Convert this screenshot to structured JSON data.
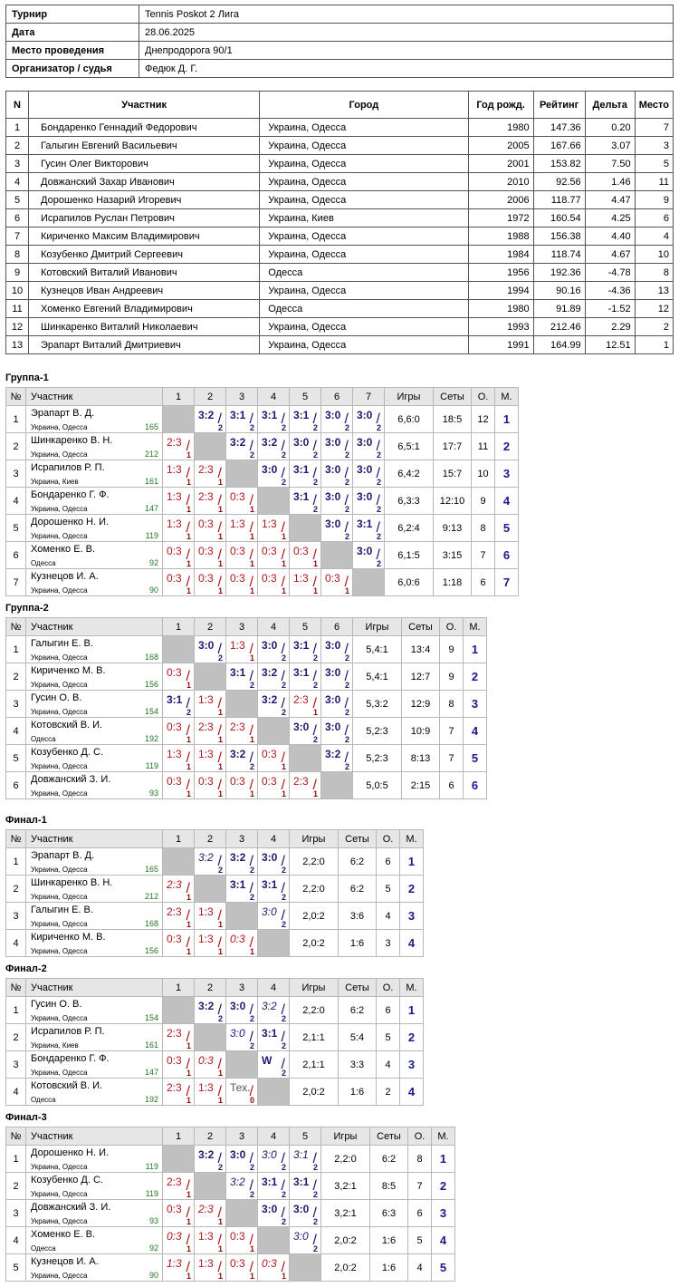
{
  "info": [
    {
      "k": "Турнир",
      "v": "Tennis Poskot 2 Лига"
    },
    {
      "k": "Дата",
      "v": "28.06.2025"
    },
    {
      "k": "Место проведения",
      "v": "Днепродорога 90/1"
    },
    {
      "k": "Организатор / судья",
      "v": "Федюк Д. Г."
    }
  ],
  "participants": {
    "headers": [
      "N",
      "Участник",
      "Город",
      "Год рожд.",
      "Рейтинг",
      "Дельта",
      "Место"
    ],
    "rows": [
      [
        "1",
        "Бондаренко Геннадий Федорович",
        "Украина, Одесса",
        "1980",
        "147.36",
        "0.20",
        "7"
      ],
      [
        "2",
        "Галыгин Евгений Васильевич",
        "Украина, Одесса",
        "2005",
        "167.66",
        "3.07",
        "3"
      ],
      [
        "3",
        "Гусин Олег Викторович",
        "Украина, Одесса",
        "2001",
        "153.82",
        "7.50",
        "5"
      ],
      [
        "4",
        "Довжанский Захар Иванович",
        "Украина, Одесса",
        "2010",
        "92.56",
        "1.46",
        "11"
      ],
      [
        "5",
        "Дорошенко Назарий Игоревич",
        "Украина, Одесса",
        "2006",
        "118.77",
        "4.47",
        "9"
      ],
      [
        "6",
        "Исрапилов Руслан Петрович",
        "Украина, Киев",
        "1972",
        "160.54",
        "4.25",
        "6"
      ],
      [
        "7",
        "Кириченко Максим Владимирович",
        "Украина, Одесса",
        "1988",
        "156.38",
        "4.40",
        "4"
      ],
      [
        "8",
        "Козубенко Дмитрий Сергеевич",
        "Украина, Одесса",
        "1984",
        "118.74",
        "4.67",
        "10"
      ],
      [
        "9",
        "Котовский Виталий Иванович",
        "Одесса",
        "1956",
        "192.36",
        "-4.78",
        "8"
      ],
      [
        "10",
        "Кузнецов Иван Андреевич",
        "Украина, Одесса",
        "1994",
        "90.16",
        "-4.36",
        "13"
      ],
      [
        "11",
        "Хоменко Евгений Владимирович",
        "Одесса",
        "1980",
        "91.89",
        "-1.52",
        "12"
      ],
      [
        "12",
        "Шинкаренко Виталий Николаевич",
        "Украина, Одесса",
        "1993",
        "212.46",
        "2.29",
        "2"
      ],
      [
        "13",
        "Эрапарт Виталий Дмитриевич",
        "Украина, Одесса",
        "1991",
        "164.99",
        "12.51",
        "1"
      ]
    ]
  },
  "group_headers": {
    "num": "№",
    "participant": "Участник",
    "games": "Игры",
    "sets": "Сеты",
    "points": "О.",
    "place": "М."
  },
  "groups": [
    {
      "title": "Группа-1",
      "players": [
        {
          "n": "1",
          "name": "Эрапарт В. Д.",
          "city": "Украина, Одесса",
          "rating": "165",
          "res": [
            null,
            [
              "3:2",
              "2"
            ],
            [
              "3:1",
              "2"
            ],
            [
              "3:1",
              "2"
            ],
            [
              "3:1",
              "2"
            ],
            [
              "3:0",
              "2"
            ],
            [
              "3:0",
              "2"
            ]
          ],
          "games": "6,6:0",
          "sets": "18:5",
          "points": "12",
          "place": "1"
        },
        {
          "n": "2",
          "name": "Шинкаренко В. Н.",
          "city": "Украина, Одесса",
          "rating": "212",
          "res": [
            [
              "2:3",
              "1"
            ],
            null,
            [
              "3:2",
              "2"
            ],
            [
              "3:2",
              "2"
            ],
            [
              "3:0",
              "2"
            ],
            [
              "3:0",
              "2"
            ],
            [
              "3:0",
              "2"
            ]
          ],
          "games": "6,5:1",
          "sets": "17:7",
          "points": "11",
          "place": "2"
        },
        {
          "n": "3",
          "name": "Исрапилов Р. П.",
          "city": "Украина, Киев",
          "rating": "161",
          "res": [
            [
              "1:3",
              "1"
            ],
            [
              "2:3",
              "1"
            ],
            null,
            [
              "3:0",
              "2"
            ],
            [
              "3:1",
              "2"
            ],
            [
              "3:0",
              "2"
            ],
            [
              "3:0",
              "2"
            ]
          ],
          "games": "6,4:2",
          "sets": "15:7",
          "points": "10",
          "place": "3"
        },
        {
          "n": "4",
          "name": "Бондаренко Г. Ф.",
          "city": "Украина, Одесса",
          "rating": "147",
          "res": [
            [
              "1:3",
              "1"
            ],
            [
              "2:3",
              "1"
            ],
            [
              "0:3",
              "1"
            ],
            null,
            [
              "3:1",
              "2"
            ],
            [
              "3:0",
              "2"
            ],
            [
              "3:0",
              "2"
            ]
          ],
          "games": "6,3:3",
          "sets": "12:10",
          "points": "9",
          "place": "4"
        },
        {
          "n": "5",
          "name": "Дорошенко Н. И.",
          "city": "Украина, Одесса",
          "rating": "119",
          "res": [
            [
              "1:3",
              "1"
            ],
            [
              "0:3",
              "1"
            ],
            [
              "1:3",
              "1"
            ],
            [
              "1:3",
              "1"
            ],
            null,
            [
              "3:0",
              "2"
            ],
            [
              "3:1",
              "2"
            ]
          ],
          "games": "6,2:4",
          "sets": "9:13",
          "points": "8",
          "place": "5"
        },
        {
          "n": "6",
          "name": "Хоменко Е. В.",
          "city": "Одесса",
          "rating": "92",
          "res": [
            [
              "0:3",
              "1"
            ],
            [
              "0:3",
              "1"
            ],
            [
              "0:3",
              "1"
            ],
            [
              "0:3",
              "1"
            ],
            [
              "0:3",
              "1"
            ],
            null,
            [
              "3:0",
              "2"
            ]
          ],
          "games": "6,1:5",
          "sets": "3:15",
          "points": "7",
          "place": "6"
        },
        {
          "n": "7",
          "name": "Кузнецов И. А.",
          "city": "Украина, Одесса",
          "rating": "90",
          "res": [
            [
              "0:3",
              "1"
            ],
            [
              "0:3",
              "1"
            ],
            [
              "0:3",
              "1"
            ],
            [
              "0:3",
              "1"
            ],
            [
              "1:3",
              "1"
            ],
            [
              "0:3",
              "1"
            ],
            null
          ],
          "games": "6,0:6",
          "sets": "1:18",
          "points": "6",
          "place": "7"
        }
      ]
    },
    {
      "title": "Группа-2",
      "players": [
        {
          "n": "1",
          "name": "Галыгин Е. В.",
          "city": "Украина, Одесса",
          "rating": "168",
          "res": [
            null,
            [
              "3:0",
              "2"
            ],
            [
              "1:3",
              "1"
            ],
            [
              "3:0",
              "2"
            ],
            [
              "3:1",
              "2"
            ],
            [
              "3:0",
              "2"
            ]
          ],
          "games": "5,4:1",
          "sets": "13:4",
          "points": "9",
          "place": "1"
        },
        {
          "n": "2",
          "name": "Кириченко М. В.",
          "city": "Украина, Одесса",
          "rating": "156",
          "res": [
            [
              "0:3",
              "1"
            ],
            null,
            [
              "3:1",
              "2"
            ],
            [
              "3:2",
              "2"
            ],
            [
              "3:1",
              "2"
            ],
            [
              "3:0",
              "2"
            ]
          ],
          "games": "5,4:1",
          "sets": "12:7",
          "points": "9",
          "place": "2"
        },
        {
          "n": "3",
          "name": "Гусин О. В.",
          "city": "Украина, Одесса",
          "rating": "154",
          "res": [
            [
              "3:1",
              "2"
            ],
            [
              "1:3",
              "1"
            ],
            null,
            [
              "3:2",
              "2"
            ],
            [
              "2:3",
              "1"
            ],
            [
              "3:0",
              "2"
            ]
          ],
          "games": "5,3:2",
          "sets": "12:9",
          "points": "8",
          "place": "3"
        },
        {
          "n": "4",
          "name": "Котовский В. И.",
          "city": "Одесса",
          "rating": "192",
          "res": [
            [
              "0:3",
              "1"
            ],
            [
              "2:3",
              "1"
            ],
            [
              "2:3",
              "1"
            ],
            null,
            [
              "3:0",
              "2"
            ],
            [
              "3:0",
              "2"
            ]
          ],
          "games": "5,2:3",
          "sets": "10:9",
          "points": "7",
          "place": "4"
        },
        {
          "n": "5",
          "name": "Козубенко Д. С.",
          "city": "Украина, Одесса",
          "rating": "119",
          "res": [
            [
              "1:3",
              "1"
            ],
            [
              "1:3",
              "1"
            ],
            [
              "3:2",
              "2"
            ],
            [
              "0:3",
              "1"
            ],
            null,
            [
              "3:2",
              "2"
            ]
          ],
          "games": "5,2:3",
          "sets": "8:13",
          "points": "7",
          "place": "5"
        },
        {
          "n": "6",
          "name": "Довжанский З. И.",
          "city": "Украина, Одесса",
          "rating": "93",
          "res": [
            [
              "0:3",
              "1"
            ],
            [
              "0:3",
              "1"
            ],
            [
              "0:3",
              "1"
            ],
            [
              "0:3",
              "1"
            ],
            [
              "2:3",
              "1"
            ],
            null
          ],
          "games": "5,0:5",
          "sets": "2:15",
          "points": "6",
          "place": "6"
        }
      ]
    },
    {
      "title": "Финал-1",
      "players": [
        {
          "n": "1",
          "name": "Эрапарт В. Д.",
          "city": "Украина, Одесса",
          "rating": "165",
          "res": [
            null,
            [
              "3:2",
              "2",
              "i"
            ],
            [
              "3:2",
              "2"
            ],
            [
              "3:0",
              "2"
            ]
          ],
          "games": "2,2:0",
          "sets": "6:2",
          "points": "6",
          "place": "1"
        },
        {
          "n": "2",
          "name": "Шинкаренко В. Н.",
          "city": "Украина, Одесса",
          "rating": "212",
          "res": [
            [
              "2:3",
              "1",
              "i"
            ],
            null,
            [
              "3:1",
              "2"
            ],
            [
              "3:1",
              "2"
            ]
          ],
          "games": "2,2:0",
          "sets": "6:2",
          "points": "5",
          "place": "2"
        },
        {
          "n": "3",
          "name": "Галыгин Е. В.",
          "city": "Украина, Одесса",
          "rating": "168",
          "res": [
            [
              "2:3",
              "1"
            ],
            [
              "1:3",
              "1"
            ],
            null,
            [
              "3:0",
              "2",
              "i"
            ]
          ],
          "games": "2,0:2",
          "sets": "3:6",
          "points": "4",
          "place": "3"
        },
        {
          "n": "4",
          "name": "Кириченко М. В.",
          "city": "Украина, Одесса",
          "rating": "156",
          "res": [
            [
              "0:3",
              "1"
            ],
            [
              "1:3",
              "1"
            ],
            [
              "0:3",
              "1",
              "i"
            ],
            null
          ],
          "games": "2,0:2",
          "sets": "1:6",
          "points": "3",
          "place": "4"
        }
      ]
    },
    {
      "title": "Финал-2",
      "players": [
        {
          "n": "1",
          "name": "Гусин О. В.",
          "city": "Украина, Одесса",
          "rating": "154",
          "res": [
            null,
            [
              "3:2",
              "2"
            ],
            [
              "3:0",
              "2"
            ],
            [
              "3:2",
              "2",
              "i"
            ]
          ],
          "games": "2,2:0",
          "sets": "6:2",
          "points": "6",
          "place": "1"
        },
        {
          "n": "2",
          "name": "Исрапилов Р. П.",
          "city": "Украина, Киев",
          "rating": "161",
          "res": [
            [
              "2:3",
              "1"
            ],
            null,
            [
              "3:0",
              "2",
              "i"
            ],
            [
              "3:1",
              "2"
            ]
          ],
          "games": "2,1:1",
          "sets": "5:4",
          "points": "5",
          "place": "2"
        },
        {
          "n": "3",
          "name": "Бондаренко Г. Ф.",
          "city": "Украина, Одесса",
          "rating": "147",
          "res": [
            [
              "0:3",
              "1"
            ],
            [
              "0:3",
              "1",
              "i"
            ],
            null,
            [
              "W",
              "2"
            ]
          ],
          "games": "2,1:1",
          "sets": "3:3",
          "points": "4",
          "place": "3"
        },
        {
          "n": "4",
          "name": "Котовский В. И.",
          "city": "Одесса",
          "rating": "192",
          "res": [
            [
              "2:3",
              "1"
            ],
            [
              "1:3",
              "1"
            ],
            [
              "Тех.",
              "0",
              "t"
            ],
            null
          ],
          "games": "2,0:2",
          "sets": "1:6",
          "points": "2",
          "place": "4"
        }
      ]
    },
    {
      "title": "Финал-3",
      "players": [
        {
          "n": "1",
          "name": "Дорошенко Н. И.",
          "city": "Украина, Одесса",
          "rating": "119",
          "res": [
            null,
            [
              "3:2",
              "2"
            ],
            [
              "3:0",
              "2"
            ],
            [
              "3:0",
              "2",
              "i"
            ],
            [
              "3:1",
              "2",
              "i"
            ]
          ],
          "games": "2,2:0",
          "sets": "6:2",
          "points": "8",
          "place": "1"
        },
        {
          "n": "2",
          "name": "Козубенко Д. С.",
          "city": "Украина, Одесса",
          "rating": "119",
          "res": [
            [
              "2:3",
              "1"
            ],
            null,
            [
              "3:2",
              "2",
              "i"
            ],
            [
              "3:1",
              "2"
            ],
            [
              "3:1",
              "2"
            ]
          ],
          "games": "3,2:1",
          "sets": "8:5",
          "points": "7",
          "place": "2"
        },
        {
          "n": "3",
          "name": "Довжанский З. И.",
          "city": "Украина, Одесса",
          "rating": "93",
          "res": [
            [
              "0:3",
              "1"
            ],
            [
              "2:3",
              "1",
              "i"
            ],
            null,
            [
              "3:0",
              "2"
            ],
            [
              "3:0",
              "2"
            ]
          ],
          "games": "3,2:1",
          "sets": "6:3",
          "points": "6",
          "place": "3"
        },
        {
          "n": "4",
          "name": "Хоменко Е. В.",
          "city": "Одесса",
          "rating": "92",
          "res": [
            [
              "0:3",
              "1",
              "i"
            ],
            [
              "1:3",
              "1"
            ],
            [
              "0:3",
              "1"
            ],
            null,
            [
              "3:0",
              "2",
              "i"
            ]
          ],
          "games": "2,0:2",
          "sets": "1:6",
          "points": "5",
          "place": "4"
        },
        {
          "n": "5",
          "name": "Кузнецов И. А.",
          "city": "Украина, Одесса",
          "rating": "90",
          "res": [
            [
              "1:3",
              "1",
              "i"
            ],
            [
              "1:3",
              "1"
            ],
            [
              "0:3",
              "1"
            ],
            [
              "0:3",
              "1",
              "i"
            ],
            null
          ],
          "games": "2,0:2",
          "sets": "1:6",
          "points": "4",
          "place": "5"
        }
      ]
    }
  ]
}
